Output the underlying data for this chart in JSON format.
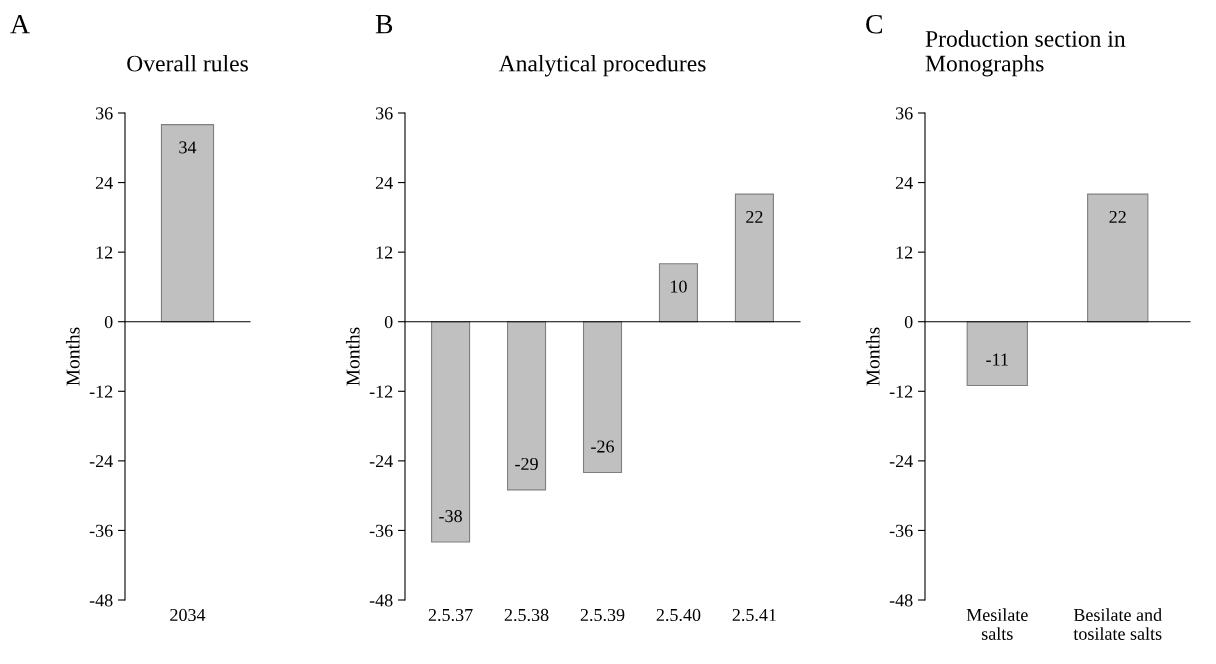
{
  "chart_data": [
    {
      "type": "bar",
      "title": "Overall rules",
      "ylabel": "Months",
      "annotations": [
        "A"
      ],
      "categories": [
        "2034"
      ],
      "values": [
        34
      ],
      "color": "#c0c0c0",
      "ylim": [
        -48,
        36
      ],
      "yticks": [
        -48,
        -36,
        -24,
        -12,
        0,
        12,
        24,
        36
      ],
      "data_labels": true
    },
    {
      "type": "bar",
      "title": "Analytical procedures",
      "ylabel": "Months",
      "annotations": [
        "B"
      ],
      "categories": [
        "2.5.37",
        "2.5.38",
        "2.5.39",
        "2.5.40",
        "2.5.41"
      ],
      "values": [
        -38,
        -29,
        -26,
        10,
        22
      ],
      "color": "#c0c0c0",
      "ylim": [
        -48,
        36
      ],
      "yticks": [
        -48,
        -36,
        -24,
        -12,
        0,
        12,
        24,
        36
      ],
      "data_labels": true
    },
    {
      "type": "bar",
      "title": "Production section in\nMonographs",
      "ylabel": "Months",
      "annotations": [
        "C"
      ],
      "categories": [
        "Mesilate\nsalts",
        "Besilate and\ntosilate salts"
      ],
      "values": [
        -11,
        22
      ],
      "color": "#c0c0c0",
      "ylim": [
        -48,
        36
      ],
      "yticks": [
        -48,
        -36,
        -24,
        -12,
        0,
        12,
        24,
        36
      ],
      "data_labels": true
    }
  ]
}
